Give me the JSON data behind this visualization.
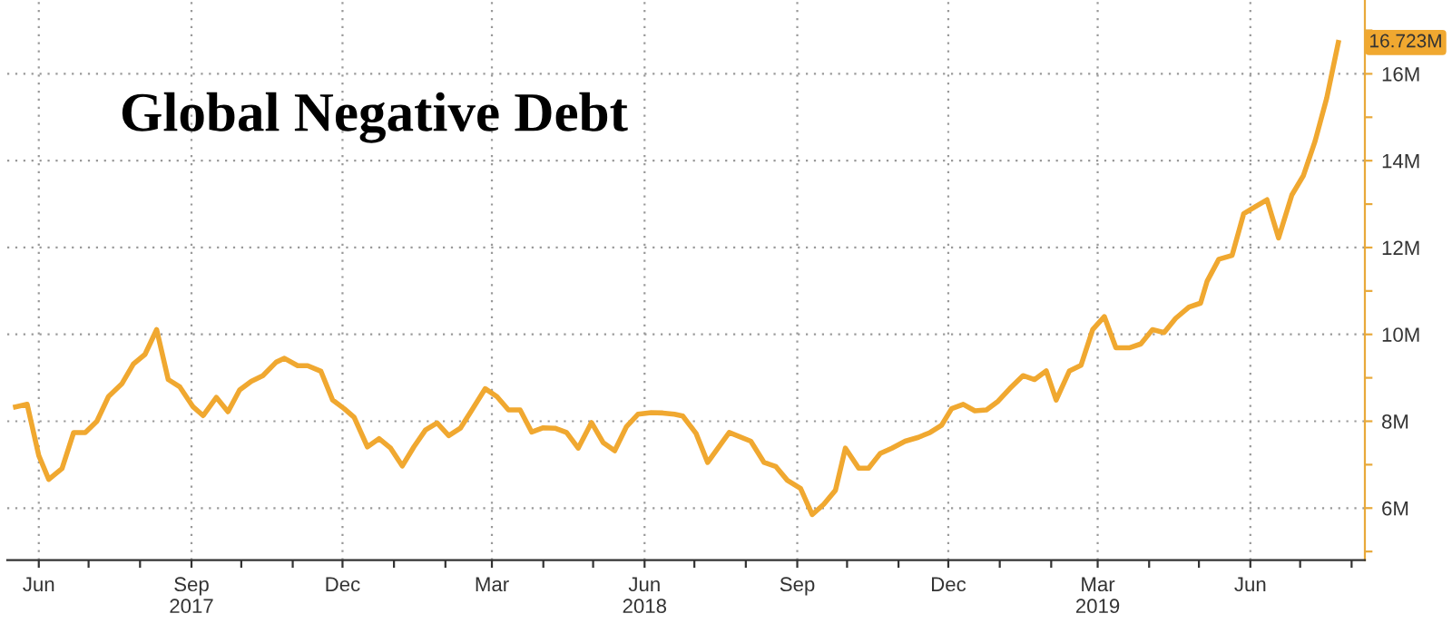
{
  "chart_data": {
    "type": "line",
    "title": "Global Negative Debt",
    "x": [
      "2017-05-18",
      "2017-05-25",
      "2017-06-01",
      "2017-06-07",
      "2017-06-15",
      "2017-06-22",
      "2017-06-29",
      "2017-07-06",
      "2017-07-13",
      "2017-07-21",
      "2017-07-28",
      "2017-08-04",
      "2017-08-11",
      "2017-08-18",
      "2017-08-25",
      "2017-09-02",
      "2017-09-08",
      "2017-09-16",
      "2017-09-23",
      "2017-09-30",
      "2017-10-07",
      "2017-10-14",
      "2017-10-22",
      "2017-10-27",
      "2017-11-04",
      "2017-11-10",
      "2017-11-18",
      "2017-11-25",
      "2017-12-02",
      "2017-12-08",
      "2017-12-16",
      "2017-12-23",
      "2017-12-30",
      "2018-01-06",
      "2018-01-13",
      "2018-01-20",
      "2018-01-27",
      "2018-02-03",
      "2018-02-10",
      "2018-02-17",
      "2018-02-25",
      "2018-03-04",
      "2018-03-11",
      "2018-03-18",
      "2018-03-25",
      "2018-04-01",
      "2018-04-08",
      "2018-04-15",
      "2018-04-22",
      "2018-04-30",
      "2018-05-07",
      "2018-05-14",
      "2018-05-21",
      "2018-05-28",
      "2018-06-05",
      "2018-06-12",
      "2018-06-19",
      "2018-06-24",
      "2018-07-02",
      "2018-07-09",
      "2018-07-22",
      "2018-08-04",
      "2018-08-12",
      "2018-08-19",
      "2018-08-26",
      "2018-09-03",
      "2018-09-10",
      "2018-09-17",
      "2018-09-24",
      "2018-09-30",
      "2018-10-08",
      "2018-10-14",
      "2018-10-21",
      "2018-10-28",
      "2018-11-05",
      "2018-11-13",
      "2018-11-20",
      "2018-11-27",
      "2018-12-03",
      "2018-12-10",
      "2018-12-17",
      "2018-12-24",
      "2018-12-31",
      "2019-01-07",
      "2019-01-15",
      "2019-01-22",
      "2019-01-29",
      "2019-02-04",
      "2019-02-12",
      "2019-02-19",
      "2019-02-26",
      "2019-03-05",
      "2019-03-12",
      "2019-03-20",
      "2019-03-27",
      "2019-04-03",
      "2019-04-10",
      "2019-04-17",
      "2019-04-25",
      "2019-05-02",
      "2019-05-06",
      "2019-05-13",
      "2019-05-21",
      "2019-05-28",
      "2019-06-04",
      "2019-06-11",
      "2019-06-18",
      "2019-06-26",
      "2019-07-03",
      "2019-07-10",
      "2019-07-17",
      "2019-07-24"
    ],
    "series": [
      {
        "color": "#f0a830",
        "values": [
          8.33,
          8.39,
          7.21,
          6.66,
          6.91,
          7.74,
          7.74,
          8.0,
          8.57,
          8.86,
          9.32,
          9.54,
          10.11,
          8.96,
          8.79,
          8.33,
          8.13,
          8.55,
          8.22,
          8.72,
          8.92,
          9.05,
          9.36,
          9.45,
          9.28,
          9.28,
          9.15,
          8.49,
          8.29,
          8.09,
          7.41,
          7.6,
          7.38,
          6.97,
          7.41,
          7.8,
          7.96,
          7.67,
          7.84,
          8.26,
          8.75,
          8.57,
          8.26,
          8.26,
          7.75,
          7.85,
          7.84,
          7.74,
          7.38,
          7.97,
          7.51,
          7.32,
          7.87,
          8.16,
          8.2,
          8.19,
          8.16,
          8.12,
          7.72,
          7.05,
          7.74,
          7.54,
          7.05,
          6.96,
          6.64,
          6.45,
          5.85,
          6.09,
          6.41,
          7.38,
          6.92,
          6.92,
          7.26,
          7.38,
          7.54,
          7.63,
          7.74,
          7.91,
          8.29,
          8.39,
          8.24,
          8.26,
          8.46,
          8.75,
          9.05,
          8.96,
          9.16,
          8.49,
          9.16,
          9.29,
          10.11,
          10.41,
          9.69,
          9.69,
          9.78,
          10.11,
          10.04,
          10.37,
          10.63,
          10.72,
          11.23,
          11.73,
          11.82,
          12.78,
          12.94,
          13.1,
          12.22,
          13.21,
          13.66,
          14.45,
          15.44,
          16.723
        ]
      }
    ],
    "ylim": [
      4.8,
      17.7
    ],
    "yticks": [
      {
        "value": 5,
        "label": null
      },
      {
        "value": 6,
        "label": "6M"
      },
      {
        "value": 7,
        "label": null
      },
      {
        "value": 8,
        "label": "8M"
      },
      {
        "value": 9,
        "label": null
      },
      {
        "value": 10,
        "label": "10M"
      },
      {
        "value": 11,
        "label": null
      },
      {
        "value": 12,
        "label": "12M"
      },
      {
        "value": 13,
        "label": null
      },
      {
        "value": 14,
        "label": "14M"
      },
      {
        "value": 15,
        "label": null
      },
      {
        "value": 16,
        "label": "16M"
      },
      {
        "value": 17,
        "label": null
      }
    ],
    "xlim": [
      "2017-05-13",
      "2019-08-09"
    ],
    "xticks": [
      {
        "value": "2017-06-01",
        "label": "Jun"
      },
      {
        "value": "2017-07-01",
        "label": null
      },
      {
        "value": "2017-08-01",
        "label": null
      },
      {
        "value": "2017-09-01",
        "label": "Sep\n2017"
      },
      {
        "value": "2017-10-01",
        "label": null
      },
      {
        "value": "2017-11-01",
        "label": null
      },
      {
        "value": "2017-12-01",
        "label": "Dec"
      },
      {
        "value": "2018-01-01",
        "label": null
      },
      {
        "value": "2018-02-01",
        "label": null
      },
      {
        "value": "2018-03-01",
        "label": "Mar"
      },
      {
        "value": "2018-04-01",
        "label": null
      },
      {
        "value": "2018-05-01",
        "label": null
      },
      {
        "value": "2018-06-01",
        "label": "Jun\n2018"
      },
      {
        "value": "2018-07-01",
        "label": null
      },
      {
        "value": "2018-08-01",
        "label": null
      },
      {
        "value": "2018-09-01",
        "label": "Sep"
      },
      {
        "value": "2018-10-01",
        "label": null
      },
      {
        "value": "2018-11-01",
        "label": null
      },
      {
        "value": "2018-12-01",
        "label": "Dec"
      },
      {
        "value": "2019-01-01",
        "label": null
      },
      {
        "value": "2019-02-01",
        "label": null
      },
      {
        "value": "2019-03-01",
        "label": "Mar\n2019"
      },
      {
        "value": "2019-04-01",
        "label": null
      },
      {
        "value": "2019-05-01",
        "label": null
      },
      {
        "value": "2019-06-01",
        "label": "Jun"
      },
      {
        "value": "2019-07-01",
        "label": null
      },
      {
        "value": "2019-08-01",
        "label": null
      }
    ],
    "grid": true,
    "marker": "none",
    "line_style": "solid",
    "annotations": [
      {
        "text": "16.723M",
        "x": "2019-07-24",
        "y": 16.723
      }
    ]
  }
}
